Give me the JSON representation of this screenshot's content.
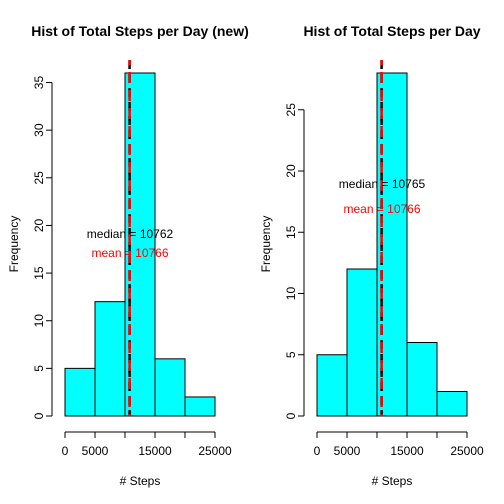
{
  "chart_data": [
    {
      "type": "bar",
      "title": "Hist of Total Steps per Day (new)",
      "xlabel": "# Steps",
      "ylabel": "Frequency",
      "bins": [
        [
          0,
          5000
        ],
        [
          5000,
          10000
        ],
        [
          10000,
          15000
        ],
        [
          15000,
          20000
        ],
        [
          20000,
          25000
        ]
      ],
      "values": [
        5,
        12,
        36,
        6,
        2
      ],
      "xlim": [
        0,
        25000
      ],
      "ylim": [
        0,
        36
      ],
      "xticks": [
        0,
        5000,
        15000,
        25000
      ],
      "xtick_marks": [
        0,
        5000,
        10000,
        15000,
        20000,
        25000
      ],
      "yticks": [
        0,
        5,
        10,
        15,
        20,
        25,
        30,
        35
      ],
      "bar_color": "#00FFFF",
      "grid": false,
      "median": {
        "value": 10762,
        "label": "median = 10762",
        "color": "#000000"
      },
      "mean": {
        "value": 10766,
        "label": "mean = 10766",
        "color": "#FF0000"
      }
    },
    {
      "type": "bar",
      "title": "Hist of Total Steps per Day",
      "xlabel": "# Steps",
      "ylabel": "Frequency",
      "bins": [
        [
          0,
          5000
        ],
        [
          5000,
          10000
        ],
        [
          10000,
          15000
        ],
        [
          15000,
          20000
        ],
        [
          20000,
          25000
        ]
      ],
      "values": [
        5,
        12,
        28,
        6,
        2
      ],
      "xlim": [
        0,
        25000
      ],
      "ylim": [
        0,
        28
      ],
      "xticks": [
        0,
        5000,
        15000,
        25000
      ],
      "xtick_marks": [
        0,
        5000,
        10000,
        15000,
        20000,
        25000
      ],
      "yticks": [
        0,
        5,
        10,
        15,
        20,
        25
      ],
      "bar_color": "#00FFFF",
      "grid": false,
      "median": {
        "value": 10765,
        "label": "median = 10765",
        "color": "#000000"
      },
      "mean": {
        "value": 10766,
        "label": "mean = 10766",
        "color": "#FF0000"
      }
    }
  ]
}
